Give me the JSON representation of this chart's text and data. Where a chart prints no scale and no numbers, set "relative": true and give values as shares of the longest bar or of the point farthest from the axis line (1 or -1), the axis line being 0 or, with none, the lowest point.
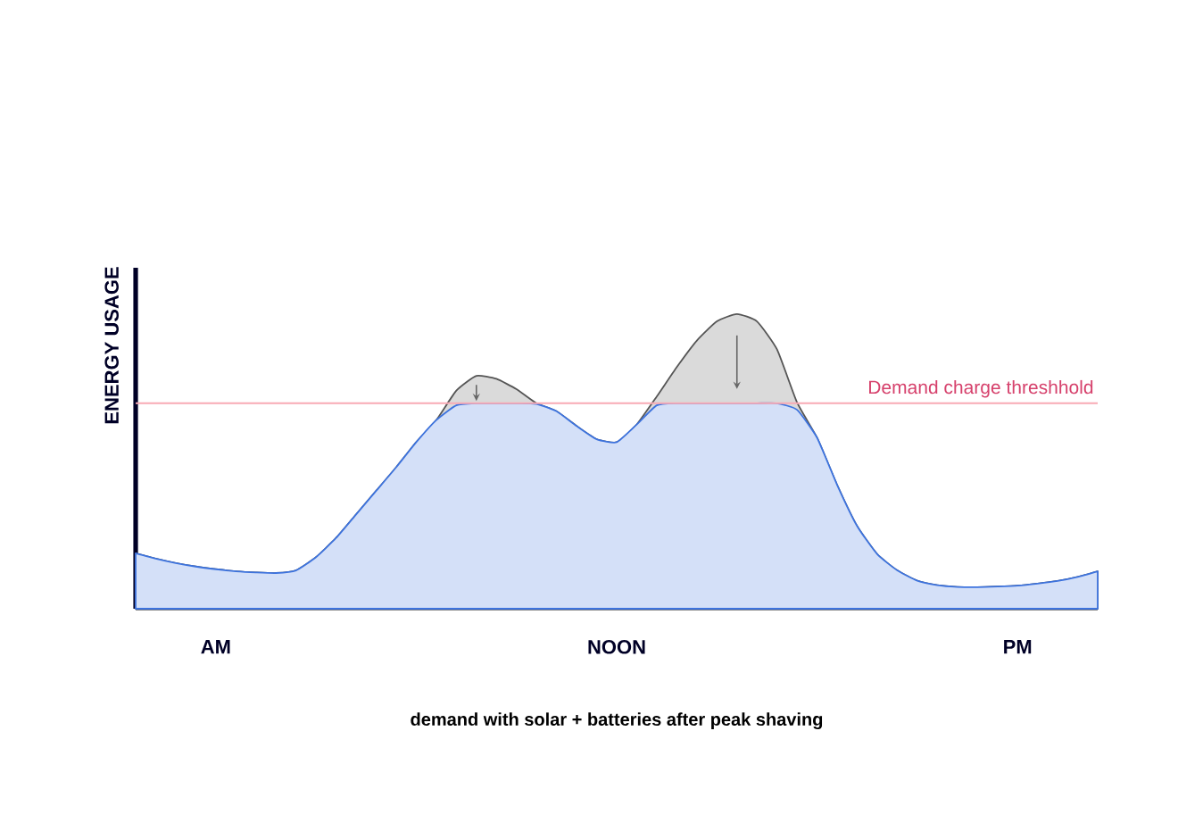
{
  "chart_data": {
    "type": "area",
    "relative": true,
    "xlabel": "demand with solar + batteries after peak shaving",
    "ylabel": "ENERGY USAGE",
    "categories": [
      null,
      null,
      null,
      null,
      "AM",
      null,
      null,
      null,
      null,
      null,
      null,
      null,
      null,
      null,
      null,
      null,
      null,
      null,
      null,
      null,
      null,
      null,
      null,
      null,
      "NOON",
      null,
      null,
      null,
      null,
      null,
      null,
      null,
      null,
      null,
      null,
      null,
      null,
      null,
      null,
      null,
      null,
      null,
      null,
      null,
      "PM",
      null,
      null,
      null,
      null
    ],
    "series": [
      {
        "color": "#555555",
        "values": [
          0.188,
          0.17,
          0.155,
          0.143,
          0.134,
          0.127,
          0.123,
          0.121,
          0.13,
          0.175,
          0.24,
          0.32,
          0.4,
          0.48,
          0.565,
          0.64,
          0.74,
          0.79,
          0.78,
          0.745,
          0.697,
          0.67,
          0.62,
          0.575,
          0.565,
          0.625,
          0.72,
          0.82,
          0.91,
          0.975,
          1.0,
          0.975,
          0.88,
          0.7,
          0.58,
          0.42,
          0.28,
          0.185,
          0.13,
          0.095,
          0.08,
          0.074,
          0.073,
          0.075,
          0.078,
          0.085,
          0.094,
          0.108,
          0.127
        ]
      },
      {
        "color": "#3d73de",
        "values": [
          0.188,
          0.17,
          0.155,
          0.143,
          0.134,
          0.127,
          0.123,
          0.121,
          0.13,
          0.175,
          0.24,
          0.32,
          0.4,
          0.48,
          0.565,
          0.64,
          0.69,
          0.697,
          0.697,
          0.697,
          0.695,
          0.67,
          0.62,
          0.575,
          0.565,
          0.625,
          0.69,
          0.697,
          0.697,
          0.697,
          0.697,
          0.697,
          0.697,
          0.675,
          0.58,
          0.42,
          0.28,
          0.185,
          0.13,
          0.095,
          0.08,
          0.074,
          0.073,
          0.075,
          0.078,
          0.085,
          0.094,
          0.108,
          0.127
        ]
      }
    ],
    "ref_lines": [
      {
        "axis": "y",
        "value": 0.697,
        "label": "Demand charge threshhold",
        "color": "#f8aab5"
      }
    ]
  }
}
